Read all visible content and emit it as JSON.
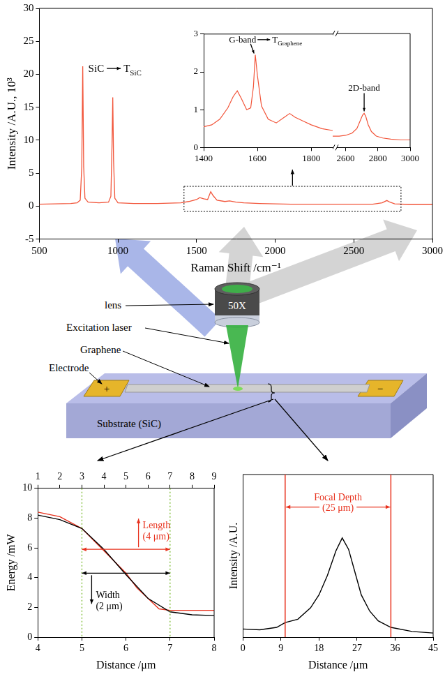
{
  "chart_data": [
    {
      "type": "line",
      "x_label": "Raman Shift /cm⁻¹",
      "y_label": "Intensity /A.U., 10³",
      "color": "#f2553a",
      "x": [
        500,
        600,
        700,
        740,
        760,
        770,
        776,
        782,
        790,
        810,
        880,
        940,
        955,
        962,
        967,
        972,
        980,
        1000,
        1100,
        1250,
        1400,
        1450,
        1500,
        1520,
        1545,
        1570,
        1590,
        1605,
        1630,
        1680,
        1710,
        1750,
        1800,
        1900,
        2100,
        2300,
        2500,
        2620,
        2680,
        2710,
        2730,
        2760,
        2850,
        3000
      ],
      "values": [
        0.3,
        0.35,
        0.4,
        0.5,
        0.9,
        6,
        21.2,
        6,
        1.2,
        0.6,
        0.5,
        0.6,
        1.5,
        9,
        16.5,
        7,
        1.2,
        0.5,
        0.4,
        0.4,
        0.5,
        0.7,
        1.0,
        1.3,
        1.1,
        1.0,
        2.2,
        1.6,
        0.9,
        0.7,
        0.8,
        0.6,
        0.5,
        0.4,
        0.3,
        0.3,
        0.3,
        0.3,
        0.5,
        0.85,
        0.6,
        0.35,
        0.25,
        0.25
      ],
      "xlim": [
        500,
        3000
      ],
      "xticks": [
        500,
        1000,
        1500,
        2000,
        2500,
        3000
      ],
      "ylim": [
        -5,
        30
      ],
      "yticks": [
        -5,
        0,
        5,
        10,
        15,
        20,
        25,
        30
      ],
      "grid": false,
      "annotations": [
        {
          "text": "SiC",
          "symbol": "T",
          "subscript": "SiC",
          "x": 776,
          "y": 21.2
        },
        {
          "shape": "box",
          "x": [
            1420,
            2800
          ],
          "y": [
            -0.8,
            3
          ]
        }
      ]
    },
    {
      "type": "line",
      "color": "#f2553a",
      "ylim": [
        0,
        3
      ],
      "yticks": [
        0,
        1,
        2,
        3
      ],
      "grid": false,
      "panels": [
        {
          "xlim": [
            1400,
            1880
          ],
          "xticks": [
            1400,
            1600,
            1800
          ],
          "x": [
            1400,
            1430,
            1460,
            1490,
            1510,
            1525,
            1540,
            1560,
            1575,
            1585,
            1592,
            1600,
            1615,
            1640,
            1670,
            1700,
            1720,
            1740,
            1770,
            1800,
            1840,
            1880
          ],
          "values": [
            0.55,
            0.6,
            0.75,
            1.05,
            1.35,
            1.5,
            1.3,
            1.0,
            1.05,
            1.6,
            2.45,
            1.9,
            1.1,
            0.75,
            0.65,
            0.8,
            0.9,
            0.8,
            0.7,
            0.6,
            0.5,
            0.45
          ]
        },
        {
          "xlim": [
            2520,
            3000
          ],
          "xticks": [
            2600,
            2800,
            3000
          ],
          "x": [
            2520,
            2560,
            2600,
            2640,
            2670,
            2690,
            2705,
            2715,
            2725,
            2740,
            2760,
            2790,
            2830,
            2880,
            2940,
            3000
          ],
          "values": [
            0.3,
            0.3,
            0.32,
            0.38,
            0.5,
            0.7,
            0.85,
            0.9,
            0.82,
            0.6,
            0.42,
            0.3,
            0.25,
            0.22,
            0.2,
            0.2
          ]
        }
      ],
      "annotations": [
        {
          "text": "G-band",
          "symbol": "T",
          "subscript": "Graphene",
          "x": 1590,
          "y": 2.45
        },
        {
          "text": "2D-band",
          "x": 2715,
          "y": 0.9
        }
      ]
    },
    {
      "type": "line",
      "x_label": "Distance /μm",
      "y_label": "Energy /mW",
      "xlim": [
        4,
        8
      ],
      "xticks": [
        4,
        5,
        6,
        7,
        8
      ],
      "x2lim": [
        1,
        9
      ],
      "x2ticks": [
        1,
        2,
        3,
        4,
        5,
        6,
        7,
        8,
        9
      ],
      "ylim": [
        0,
        10
      ],
      "yticks": [
        0,
        2,
        4,
        6,
        8,
        10
      ],
      "grid": false,
      "series": [
        {
          "color": "#000000",
          "x": [
            4,
            4.5,
            5,
            5.5,
            6,
            6.5,
            7,
            7.5,
            8
          ],
          "values": [
            8.2,
            7.9,
            7.3,
            5.9,
            4.2,
            2.6,
            1.7,
            1.5,
            1.45
          ]
        },
        {
          "color": "#e8321e",
          "axis": "x2",
          "x": [
            1,
            2,
            3,
            4,
            5,
            5.5,
            6,
            6.5,
            7,
            8,
            9
          ],
          "values": [
            8.4,
            8.1,
            7.3,
            5.8,
            4.3,
            3.3,
            2.6,
            1.9,
            1.8,
            1.8,
            1.8
          ]
        }
      ],
      "vlines": {
        "x": [
          5,
          7
        ],
        "color": "#8bc34a"
      },
      "annotations": [
        {
          "text": [
            "Length",
            "(4 μm)"
          ],
          "color": "#e8321e",
          "axis": "x2",
          "x": [
            3,
            7
          ],
          "y": 5.9,
          "direction": "up"
        },
        {
          "text": [
            "Width",
            "(2 μm)"
          ],
          "color": "#000000",
          "x": [
            5,
            7
          ],
          "y": 4.3,
          "direction": "down"
        }
      ]
    },
    {
      "type": "line",
      "x_label": "Distance /μm",
      "y_label": "Intensity /A.U.",
      "color": "#000000",
      "x": [
        0,
        4,
        8,
        10,
        13,
        16,
        18,
        20,
        22,
        23.5,
        25,
        26.5,
        28,
        30,
        32,
        35,
        40,
        45
      ],
      "values": [
        0.5,
        0.45,
        0.6,
        0.9,
        1.1,
        1.8,
        2.6,
        3.8,
        5.3,
        6.1,
        5.4,
        4.0,
        2.6,
        1.6,
        1.0,
        0.6,
        0.35,
        0.25
      ],
      "xlim": [
        0,
        45
      ],
      "xticks": [
        0,
        9,
        18,
        27,
        36,
        45
      ],
      "ylim": [
        0,
        10
      ],
      "tick_labels": "x",
      "grid": false,
      "vlines": {
        "x": [
          10,
          35
        ],
        "color": "#e8321e"
      },
      "annotations": [
        {
          "text": [
            "Focal Depth",
            "(25 μm)"
          ],
          "color": "#e8321e",
          "x": [
            10,
            35
          ],
          "y": 8.0
        }
      ]
    }
  ],
  "diagram": {
    "lens": "lens",
    "magnification": "50X",
    "laser": "Excitation laser",
    "sample": "Graphene",
    "electrode": "Electrode",
    "poles": [
      "+",
      "−"
    ],
    "substrate": "Substrate (SiC)"
  }
}
